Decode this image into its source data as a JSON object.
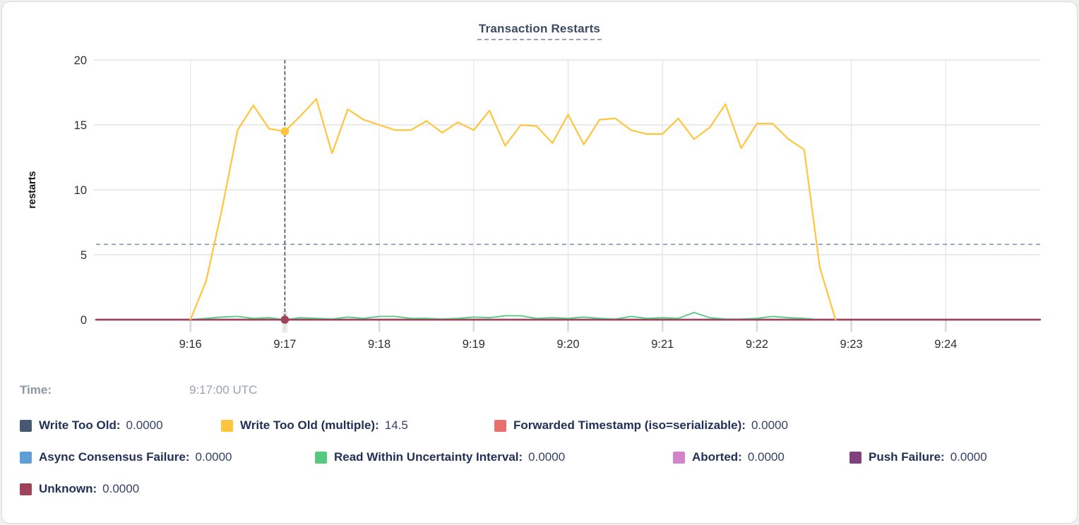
{
  "card": {
    "title": "Transaction Restarts"
  },
  "tooltip": {
    "time_label": "Time:",
    "time_value": "9:17:00 UTC"
  },
  "legend": {
    "rows": [
      [
        {
          "label": "Write Too Old:",
          "value": "0.0000",
          "color": "#475872"
        },
        {
          "label": "Write Too Old (multiple):",
          "value": "14.5",
          "color": "#FFC53D"
        },
        {
          "label": "Forwarded Timestamp (iso=serializable):",
          "value": "0.0000",
          "color": "#E8716D"
        }
      ],
      [
        {
          "label": "Async Consensus Failure:",
          "value": "0.0000",
          "color": "#5F9FD6"
        },
        {
          "label": "Read Within Uncertainty Interval:",
          "value": "0.0000",
          "color": "#55C97E"
        },
        {
          "label": "Aborted:",
          "value": "0.0000",
          "color": "#D483CB"
        },
        {
          "label": "Push Failure:",
          "value": "0.0000",
          "color": "#81407E"
        }
      ],
      [
        {
          "label": "Unknown:",
          "value": "0.0000",
          "color": "#A0425A"
        }
      ]
    ]
  },
  "chart_data": {
    "type": "line",
    "title": "Transaction Restarts",
    "ylabel": "restarts",
    "xlabel": "",
    "ylim": [
      0,
      20
    ],
    "y_ticks": [
      0,
      5,
      10,
      15,
      20
    ],
    "grid": true,
    "legend_position": "bottom",
    "x_domain": [
      "9:15:00",
      "9:25:00"
    ],
    "x_domain_s": [
      0,
      600
    ],
    "x_ticks": [
      {
        "s": 60,
        "label": "9:16"
      },
      {
        "s": 120,
        "label": "9:17"
      },
      {
        "s": 180,
        "label": "9:18"
      },
      {
        "s": 240,
        "label": "9:19"
      },
      {
        "s": 300,
        "label": "9:20"
      },
      {
        "s": 360,
        "label": "9:21"
      },
      {
        "s": 420,
        "label": "9:22"
      },
      {
        "s": 480,
        "label": "9:23"
      },
      {
        "s": 540,
        "label": "9:24"
      }
    ],
    "threshold_line": {
      "value": 5.8,
      "style": "dashed",
      "color": "#8095AB"
    },
    "crosshair": {
      "s": 120,
      "time": "9:17:00 UTC",
      "color": "#3E5468",
      "points": [
        {
          "series": "Write Too Old (multiple)",
          "value": 14.5
        },
        {
          "series": "Unknown",
          "value": 0
        }
      ]
    },
    "series": [
      {
        "name": "Write Too Old",
        "color": "#475872",
        "x": [
          0,
          600
        ],
        "values": [
          0,
          0
        ]
      },
      {
        "name": "Write Too Old (multiple)",
        "color": "#FFC53D",
        "start_s": 60,
        "step_s": 10,
        "values": [
          0,
          3.0,
          8.5,
          14.6,
          16.5,
          14.7,
          14.5,
          15.7,
          17.0,
          12.8,
          16.2,
          15.4,
          15.0,
          14.6,
          14.6,
          15.3,
          14.4,
          15.2,
          14.6,
          16.1,
          13.4,
          15.0,
          14.9,
          13.6,
          15.8,
          13.5,
          15.4,
          15.5,
          14.6,
          14.3,
          14.3,
          15.5,
          13.9,
          14.8,
          16.6,
          13.2,
          15.1,
          15.1,
          13.9,
          13.1,
          4.0,
          0
        ]
      },
      {
        "name": "Forwarded Timestamp (iso=serializable)",
        "color": "#E8716D",
        "x": [
          0,
          600
        ],
        "values": [
          0,
          0
        ]
      },
      {
        "name": "Async Consensus Failure",
        "color": "#5F9FD6",
        "x": [
          0,
          600
        ],
        "values": [
          0,
          0
        ]
      },
      {
        "name": "Read Within Uncertainty Interval",
        "color": "#55C97E",
        "start_s": 60,
        "step_s": 10,
        "values": [
          0,
          0.1,
          0.2,
          0.25,
          0.1,
          0.15,
          0.0,
          0.15,
          0.1,
          0.05,
          0.2,
          0.1,
          0.25,
          0.25,
          0.1,
          0.1,
          0.05,
          0.1,
          0.2,
          0.15,
          0.3,
          0.3,
          0.1,
          0.15,
          0.1,
          0.2,
          0.1,
          0.05,
          0.25,
          0.1,
          0.15,
          0.1,
          0.55,
          0.15,
          0.05,
          0.05,
          0.1,
          0.25,
          0.15,
          0.1,
          0.0
        ]
      },
      {
        "name": "Aborted",
        "color": "#D483CB",
        "x": [
          0,
          600
        ],
        "values": [
          0,
          0
        ]
      },
      {
        "name": "Push Failure",
        "color": "#81407E",
        "x": [
          0,
          600
        ],
        "values": [
          0,
          0
        ]
      },
      {
        "name": "Unknown",
        "color": "#A0425A",
        "x": [
          0,
          600
        ],
        "values": [
          0,
          0
        ]
      }
    ],
    "draw_order": [
      0,
      2,
      3,
      5,
      6,
      4,
      7,
      1
    ]
  }
}
